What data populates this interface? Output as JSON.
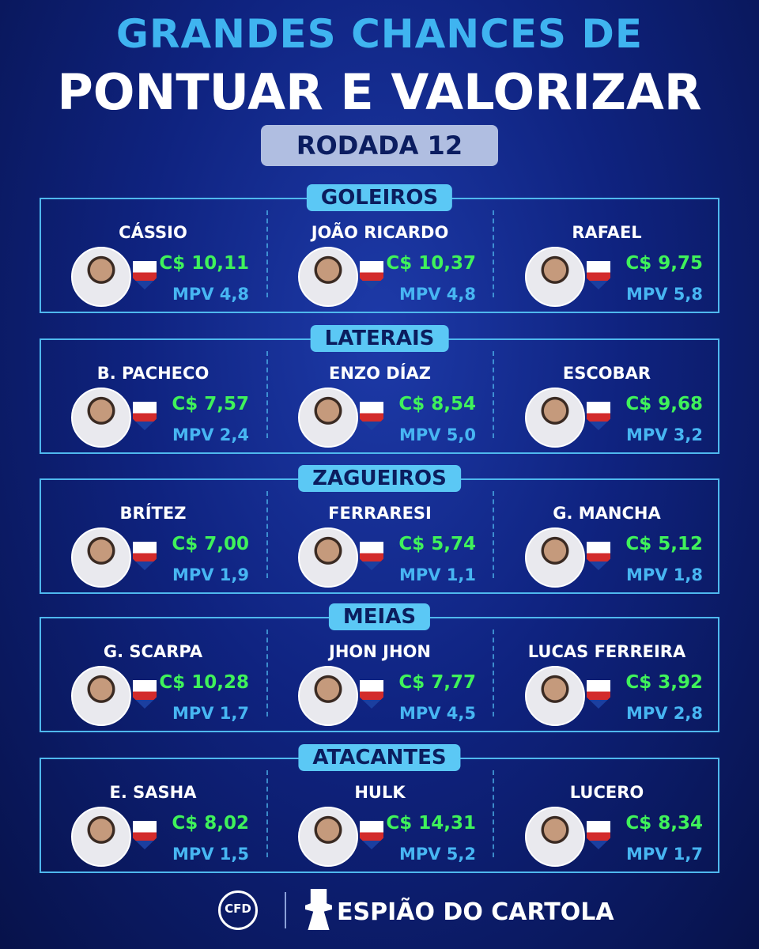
{
  "header": {
    "title_line1": "GRANDES CHANCES DE",
    "title_line2": "PONTUAR E VALORIZAR",
    "round": "RODADA 12"
  },
  "sections": [
    {
      "name": "GOLEIROS",
      "players": [
        {
          "name": "CÁSSIO",
          "price": "C$ 10,11",
          "mpv": "MPV 4,8"
        },
        {
          "name": "JOÃO RICARDO",
          "price": "C$ 10,37",
          "mpv": "MPV 4,8"
        },
        {
          "name": "RAFAEL",
          "price": "C$ 9,75",
          "mpv": "MPV 5,8"
        }
      ]
    },
    {
      "name": "LATERAIS",
      "players": [
        {
          "name": "B. PACHECO",
          "price": "C$ 7,57",
          "mpv": "MPV 2,4"
        },
        {
          "name": "ENZO DÍAZ",
          "price": "C$ 8,54",
          "mpv": "MPV 5,0"
        },
        {
          "name": "ESCOBAR",
          "price": "C$ 9,68",
          "mpv": "MPV 3,2"
        }
      ]
    },
    {
      "name": "ZAGUEIROS",
      "players": [
        {
          "name": "BRÍTEZ",
          "price": "C$ 7,00",
          "mpv": "MPV 1,9"
        },
        {
          "name": "FERRARESI",
          "price": "C$ 5,74",
          "mpv": "MPV 1,1"
        },
        {
          "name": "G. MANCHA",
          "price": "C$ 5,12",
          "mpv": "MPV 1,8"
        }
      ]
    },
    {
      "name": "MEIAS",
      "players": [
        {
          "name": "G. SCARPA",
          "price": "C$ 10,28",
          "mpv": "MPV 1,7"
        },
        {
          "name": "JHON JHON",
          "price": "C$ 7,77",
          "mpv": "MPV 4,5"
        },
        {
          "name": "LUCAS FERREIRA",
          "price": "C$ 3,92",
          "mpv": "MPV 2,8"
        }
      ]
    },
    {
      "name": "ATACANTES",
      "players": [
        {
          "name": "E. SASHA",
          "price": "C$ 8,02",
          "mpv": "MPV 1,5"
        },
        {
          "name": "HULK",
          "price": "C$ 14,31",
          "mpv": "MPV 5,2"
        },
        {
          "name": "LUCERO",
          "price": "C$ 8,34",
          "mpv": "MPV 1,7"
        }
      ]
    }
  ],
  "footer": {
    "logo_left": "CFD",
    "logo_right": "ESPIÃO DO CARTOLA"
  }
}
